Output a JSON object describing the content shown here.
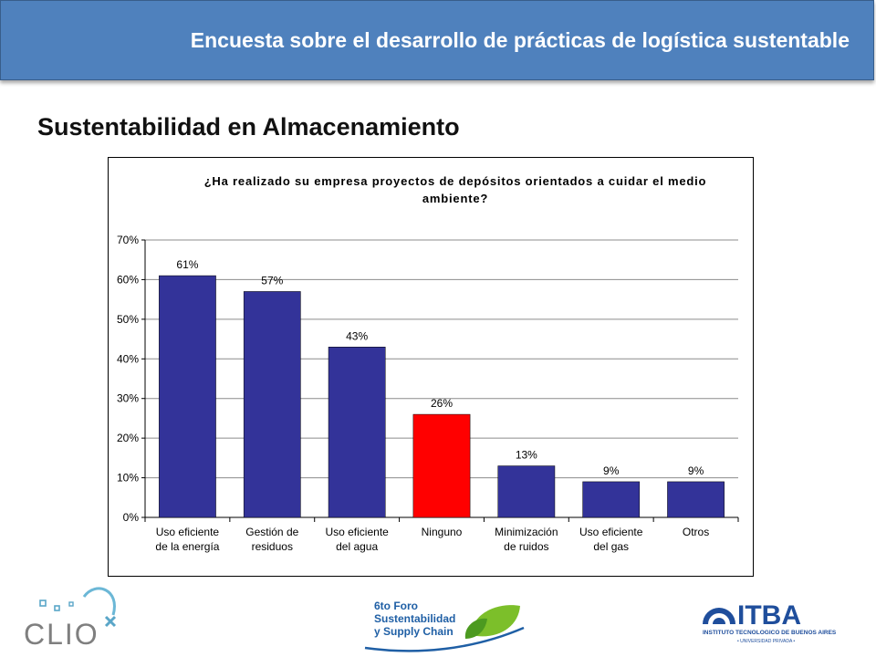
{
  "header": {
    "title": "Encuesta sobre el desarrollo de prácticas de logística sustentable"
  },
  "section": {
    "title": "Sustentabilidad en Almacenamiento"
  },
  "chart_data": {
    "type": "bar",
    "title": "¿Ha realizado su empresa proyectos de depósitos orientados a cuidar el medio ambiente?",
    "categories": [
      [
        "Uso eficiente",
        "de la energía"
      ],
      [
        "Gestión de",
        "residuos"
      ],
      [
        "Uso eficiente",
        "del agua"
      ],
      [
        "Ninguno"
      ],
      [
        "Minimización",
        "de ruidos"
      ],
      [
        "Uso eficiente",
        "del gas"
      ],
      [
        "Otros"
      ]
    ],
    "values": [
      61,
      57,
      43,
      26,
      13,
      9,
      9
    ],
    "data_labels": [
      "61%",
      "57%",
      "43%",
      "26%",
      "13%",
      "9%",
      "9%"
    ],
    "bar_colors": [
      "#333399",
      "#333399",
      "#333399",
      "#ff0000",
      "#333399",
      "#333399",
      "#333399"
    ],
    "ylim": [
      0,
      70
    ],
    "yticks": [
      "0%",
      "10%",
      "20%",
      "30%",
      "40%",
      "50%",
      "60%",
      "70%"
    ],
    "grid": true,
    "legend": "none"
  },
  "footer": {
    "clio_text": "CLIO",
    "foro_line1": "6to Foro",
    "foro_line2": "Sustentabilidad",
    "foro_line3": "y Supply Chain",
    "itba_text": "ITBA",
    "itba_sub1": "INSTITUTO TECNOLOGICO DE BUENOS AIRES",
    "itba_sub2": "• UNIVERSIDAD PRIVADA •"
  }
}
